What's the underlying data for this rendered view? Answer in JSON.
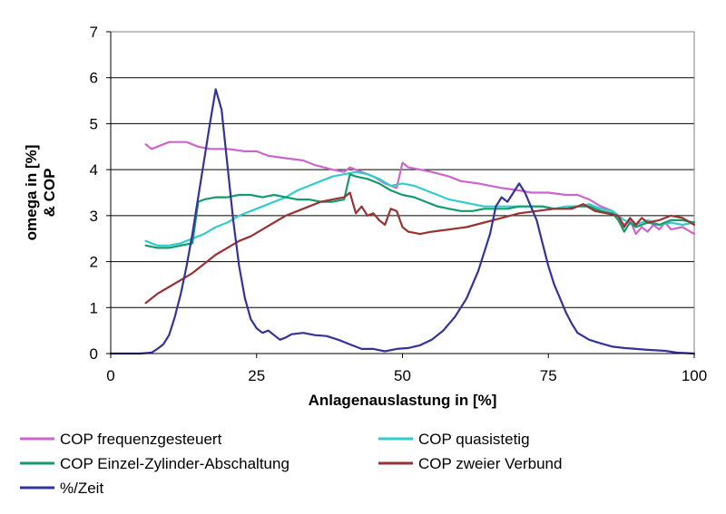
{
  "chart_data": {
    "type": "line",
    "xlabel": "Anlagenauslastung in [%]",
    "ylabel_lines": [
      "omega in [%]",
      "& COP"
    ],
    "xlim": [
      0,
      100
    ],
    "ylim": [
      0,
      7
    ],
    "x_ticks": [
      0,
      25,
      50,
      75,
      100
    ],
    "y_ticks": [
      0,
      1,
      2,
      3,
      4,
      5,
      6,
      7
    ],
    "grid": "horizontal",
    "legend_position": "bottom",
    "series": [
      {
        "name": "COP frequenzgesteuert",
        "color": "#cc66cc",
        "points": [
          [
            6,
            4.55
          ],
          [
            7,
            4.45
          ],
          [
            8,
            4.5
          ],
          [
            10,
            4.6
          ],
          [
            13,
            4.6
          ],
          [
            15,
            4.5
          ],
          [
            17,
            4.45
          ],
          [
            20,
            4.45
          ],
          [
            23,
            4.4
          ],
          [
            25,
            4.4
          ],
          [
            27,
            4.3
          ],
          [
            30,
            4.25
          ],
          [
            33,
            4.2
          ],
          [
            35,
            4.1
          ],
          [
            38,
            4.0
          ],
          [
            40,
            3.95
          ],
          [
            41,
            4.05
          ],
          [
            43,
            3.95
          ],
          [
            45,
            3.85
          ],
          [
            47,
            3.7
          ],
          [
            49,
            3.6
          ],
          [
            50,
            4.15
          ],
          [
            51,
            4.05
          ],
          [
            53,
            4.0
          ],
          [
            55,
            3.95
          ],
          [
            58,
            3.85
          ],
          [
            60,
            3.75
          ],
          [
            63,
            3.7
          ],
          [
            65,
            3.65
          ],
          [
            67,
            3.6
          ],
          [
            70,
            3.55
          ],
          [
            72,
            3.5
          ],
          [
            75,
            3.5
          ],
          [
            78,
            3.45
          ],
          [
            80,
            3.45
          ],
          [
            82,
            3.35
          ],
          [
            84,
            3.2
          ],
          [
            86,
            3.1
          ],
          [
            88,
            2.8
          ],
          [
            89,
            2.9
          ],
          [
            90,
            2.6
          ],
          [
            91,
            2.75
          ],
          [
            92,
            2.65
          ],
          [
            93,
            2.8
          ],
          [
            94,
            2.7
          ],
          [
            95,
            2.85
          ],
          [
            96,
            2.7
          ],
          [
            98,
            2.75
          ],
          [
            100,
            2.6
          ]
        ]
      },
      {
        "name": "COP quasistetig",
        "color": "#33cccc",
        "points": [
          [
            6,
            2.45
          ],
          [
            8,
            2.35
          ],
          [
            10,
            2.35
          ],
          [
            12,
            2.4
          ],
          [
            14,
            2.5
          ],
          [
            16,
            2.6
          ],
          [
            18,
            2.75
          ],
          [
            20,
            2.85
          ],
          [
            22,
            3.0
          ],
          [
            24,
            3.1
          ],
          [
            26,
            3.2
          ],
          [
            28,
            3.3
          ],
          [
            30,
            3.4
          ],
          [
            32,
            3.55
          ],
          [
            34,
            3.65
          ],
          [
            36,
            3.75
          ],
          [
            38,
            3.85
          ],
          [
            40,
            3.9
          ],
          [
            42,
            3.95
          ],
          [
            44,
            3.9
          ],
          [
            46,
            3.8
          ],
          [
            48,
            3.65
          ],
          [
            50,
            3.7
          ],
          [
            52,
            3.65
          ],
          [
            54,
            3.55
          ],
          [
            56,
            3.45
          ],
          [
            58,
            3.35
          ],
          [
            60,
            3.3
          ],
          [
            62,
            3.25
          ],
          [
            64,
            3.2
          ],
          [
            66,
            3.2
          ],
          [
            68,
            3.2
          ],
          [
            70,
            3.2
          ],
          [
            72,
            3.2
          ],
          [
            74,
            3.2
          ],
          [
            76,
            3.15
          ],
          [
            78,
            3.2
          ],
          [
            80,
            3.2
          ],
          [
            82,
            3.25
          ],
          [
            84,
            3.15
          ],
          [
            86,
            3.1
          ],
          [
            88,
            2.9
          ],
          [
            90,
            2.8
          ],
          [
            92,
            2.9
          ],
          [
            94,
            2.8
          ],
          [
            96,
            2.85
          ],
          [
            98,
            2.8
          ],
          [
            100,
            2.85
          ]
        ]
      },
      {
        "name": "COP Einzel-Zylinder-Abschaltung",
        "color": "#139b6b",
        "points": [
          [
            6,
            2.35
          ],
          [
            8,
            2.3
          ],
          [
            10,
            2.3
          ],
          [
            12,
            2.35
          ],
          [
            14,
            2.4
          ],
          [
            15,
            3.3
          ],
          [
            16,
            3.35
          ],
          [
            18,
            3.4
          ],
          [
            20,
            3.4
          ],
          [
            22,
            3.45
          ],
          [
            24,
            3.45
          ],
          [
            26,
            3.4
          ],
          [
            28,
            3.45
          ],
          [
            30,
            3.4
          ],
          [
            32,
            3.35
          ],
          [
            34,
            3.35
          ],
          [
            36,
            3.3
          ],
          [
            38,
            3.3
          ],
          [
            40,
            3.35
          ],
          [
            41,
            3.9
          ],
          [
            42,
            3.85
          ],
          [
            44,
            3.8
          ],
          [
            46,
            3.7
          ],
          [
            48,
            3.55
          ],
          [
            50,
            3.45
          ],
          [
            52,
            3.4
          ],
          [
            54,
            3.3
          ],
          [
            56,
            3.2
          ],
          [
            58,
            3.15
          ],
          [
            60,
            3.1
          ],
          [
            62,
            3.1
          ],
          [
            64,
            3.15
          ],
          [
            66,
            3.15
          ],
          [
            68,
            3.15
          ],
          [
            70,
            3.2
          ],
          [
            72,
            3.2
          ],
          [
            74,
            3.2
          ],
          [
            76,
            3.15
          ],
          [
            78,
            3.15
          ],
          [
            80,
            3.2
          ],
          [
            82,
            3.2
          ],
          [
            84,
            3.1
          ],
          [
            86,
            3.05
          ],
          [
            87,
            2.9
          ],
          [
            88,
            2.65
          ],
          [
            89,
            2.85
          ],
          [
            90,
            2.75
          ],
          [
            92,
            2.85
          ],
          [
            94,
            2.8
          ],
          [
            96,
            2.9
          ],
          [
            98,
            2.9
          ],
          [
            100,
            2.85
          ]
        ]
      },
      {
        "name": "COP zweier Verbund",
        "color": "#993333",
        "points": [
          [
            6,
            1.1
          ],
          [
            8,
            1.3
          ],
          [
            10,
            1.45
          ],
          [
            12,
            1.6
          ],
          [
            14,
            1.75
          ],
          [
            16,
            1.95
          ],
          [
            18,
            2.15
          ],
          [
            20,
            2.3
          ],
          [
            22,
            2.45
          ],
          [
            24,
            2.55
          ],
          [
            26,
            2.7
          ],
          [
            28,
            2.85
          ],
          [
            30,
            3.0
          ],
          [
            32,
            3.1
          ],
          [
            34,
            3.2
          ],
          [
            36,
            3.3
          ],
          [
            38,
            3.35
          ],
          [
            40,
            3.4
          ],
          [
            41,
            3.5
          ],
          [
            42,
            3.05
          ],
          [
            43,
            3.2
          ],
          [
            44,
            3.0
          ],
          [
            45,
            3.05
          ],
          [
            46,
            2.9
          ],
          [
            47,
            2.8
          ],
          [
            48,
            3.15
          ],
          [
            49,
            3.1
          ],
          [
            50,
            2.75
          ],
          [
            51,
            2.65
          ],
          [
            53,
            2.6
          ],
          [
            55,
            2.65
          ],
          [
            58,
            2.7
          ],
          [
            61,
            2.75
          ],
          [
            64,
            2.85
          ],
          [
            67,
            2.95
          ],
          [
            70,
            3.05
          ],
          [
            73,
            3.1
          ],
          [
            76,
            3.15
          ],
          [
            79,
            3.15
          ],
          [
            81,
            3.25
          ],
          [
            83,
            3.1
          ],
          [
            85,
            3.05
          ],
          [
            87,
            3.0
          ],
          [
            88,
            2.75
          ],
          [
            89,
            2.95
          ],
          [
            90,
            2.8
          ],
          [
            91,
            2.95
          ],
          [
            92,
            2.85
          ],
          [
            94,
            2.9
          ],
          [
            96,
            3.0
          ],
          [
            98,
            2.95
          ],
          [
            100,
            2.8
          ]
        ]
      },
      {
        "name": "%/Zeit",
        "color": "#333399",
        "points": [
          [
            0,
            0.0
          ],
          [
            5,
            0.0
          ],
          [
            7,
            0.02
          ],
          [
            8,
            0.1
          ],
          [
            9,
            0.2
          ],
          [
            10,
            0.4
          ],
          [
            11,
            0.8
          ],
          [
            12,
            1.3
          ],
          [
            13,
            1.9
          ],
          [
            14,
            2.6
          ],
          [
            15,
            3.4
          ],
          [
            16,
            4.2
          ],
          [
            17,
            5.0
          ],
          [
            18,
            5.75
          ],
          [
            19,
            5.3
          ],
          [
            20,
            4.1
          ],
          [
            21,
            2.9
          ],
          [
            22,
            1.9
          ],
          [
            23,
            1.2
          ],
          [
            24,
            0.75
          ],
          [
            25,
            0.55
          ],
          [
            26,
            0.45
          ],
          [
            27,
            0.5
          ],
          [
            28,
            0.4
          ],
          [
            29,
            0.3
          ],
          [
            30,
            0.35
          ],
          [
            31,
            0.42
          ],
          [
            33,
            0.45
          ],
          [
            35,
            0.4
          ],
          [
            37,
            0.38
          ],
          [
            39,
            0.3
          ],
          [
            41,
            0.2
          ],
          [
            43,
            0.1
          ],
          [
            45,
            0.1
          ],
          [
            47,
            0.05
          ],
          [
            49,
            0.1
          ],
          [
            51,
            0.12
          ],
          [
            53,
            0.18
          ],
          [
            55,
            0.3
          ],
          [
            57,
            0.5
          ],
          [
            59,
            0.8
          ],
          [
            61,
            1.2
          ],
          [
            63,
            1.8
          ],
          [
            65,
            2.6
          ],
          [
            66,
            3.2
          ],
          [
            67,
            3.4
          ],
          [
            68,
            3.3
          ],
          [
            69,
            3.5
          ],
          [
            70,
            3.7
          ],
          [
            71,
            3.5
          ],
          [
            72,
            3.2
          ],
          [
            73,
            2.9
          ],
          [
            74,
            2.4
          ],
          [
            75,
            1.9
          ],
          [
            76,
            1.5
          ],
          [
            77,
            1.2
          ],
          [
            78,
            0.9
          ],
          [
            79,
            0.65
          ],
          [
            80,
            0.45
          ],
          [
            82,
            0.3
          ],
          [
            84,
            0.22
          ],
          [
            86,
            0.15
          ],
          [
            88,
            0.12
          ],
          [
            90,
            0.1
          ],
          [
            92,
            0.08
          ],
          [
            95,
            0.06
          ],
          [
            97,
            0.02
          ],
          [
            100,
            0.0
          ]
        ]
      }
    ]
  }
}
